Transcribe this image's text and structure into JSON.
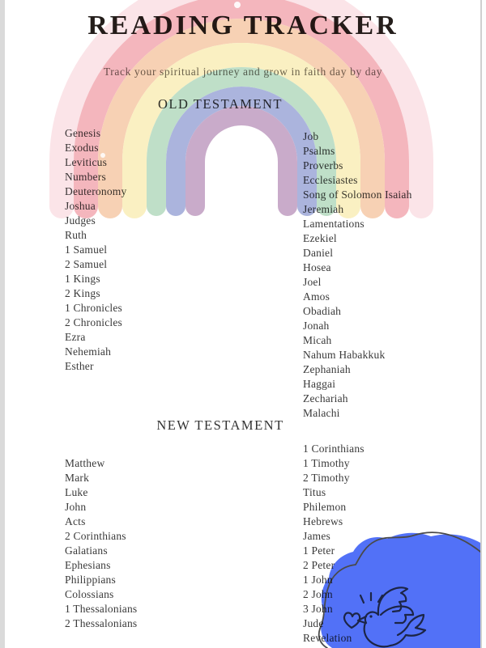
{
  "page": {
    "title": "READING TRACKER",
    "subtitle": "Track your spiritual journey and grow in faith day by day"
  },
  "sections": {
    "old_testament": {
      "heading": "OLD TESTAMENT",
      "left_books": [
        "Genesis",
        "Exodus",
        "Leviticus",
        "Numbers",
        "Deuteronomy",
        "Joshua",
        "Judges",
        "Ruth",
        "1 Samuel",
        "2 Samuel",
        "1 Kings",
        "2 Kings",
        "1 Chronicles",
        "2 Chronicles",
        "Ezra",
        "Nehemiah",
        "Esther"
      ],
      "right_books": [
        "Job",
        "Psalms",
        "Proverbs",
        "Ecclesiastes",
        "Song of Solomon Isaiah",
        "Jeremiah",
        "Lamentations",
        "Ezekiel",
        "Daniel",
        "Hosea",
        "Joel",
        "Amos",
        "Obadiah",
        "Jonah",
        "Micah",
        "Nahum Habakkuk",
        "Zephaniah",
        "Haggai",
        "Zechariah",
        "Malachi"
      ]
    },
    "new_testament": {
      "heading": "NEW TESTAMENT",
      "left_books": [
        "Matthew",
        "Mark",
        "Luke",
        "John",
        "Acts",
        "2 Corinthians",
        "Galatians",
        "Ephesians",
        "Philippians",
        "Colossians",
        "1 Thessalonians",
        "2 Thessalonians"
      ],
      "right_books": [
        "1 Corinthians",
        "1 Timothy",
        "2 Timothy",
        "Titus",
        "Philemon",
        "Hebrews",
        "James",
        "1 Peter",
        "2 Peter",
        "1 John",
        "2 John",
        "3 John",
        "Jude",
        "Revelation"
      ]
    }
  },
  "decorations": {
    "rainbow": {
      "stripe_colors": [
        "#fbe4e8",
        "#f4b6bd",
        "#f7d1b4",
        "#faf0c2",
        "#bfdfc8",
        "#abb4dd",
        "#c9abca"
      ]
    },
    "blob": {
      "color": "#5271f7",
      "outline_color": "#4a4a4a",
      "doodle_color": "#1c2546"
    },
    "icons": [
      "rainbow-icon",
      "dove-icon",
      "heart-icon",
      "sparkle-icon"
    ]
  }
}
